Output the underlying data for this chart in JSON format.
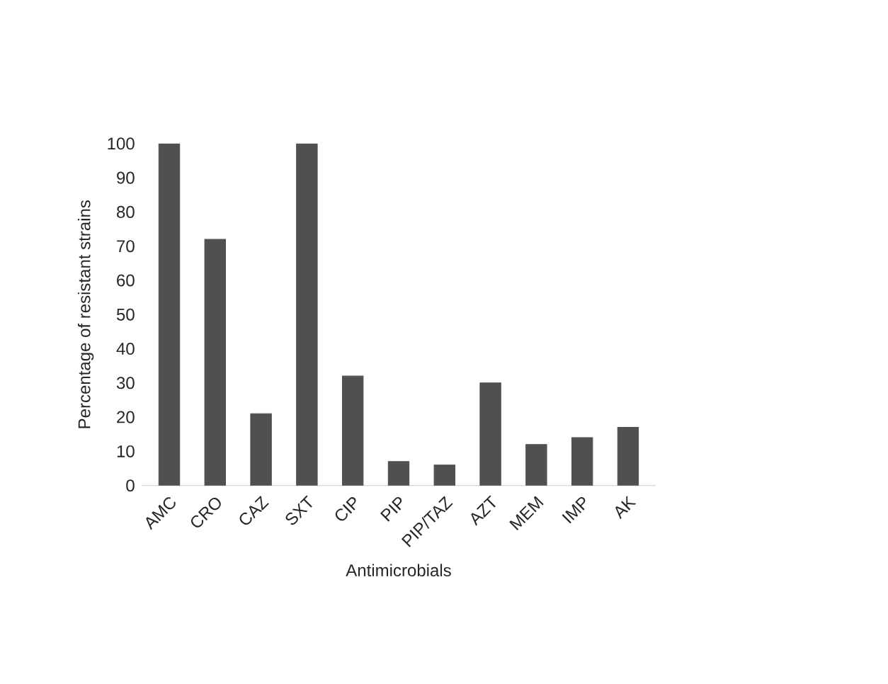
{
  "chart_data": {
    "type": "bar",
    "xlabel": "Antimicrobials",
    "ylabel": "Percentage of resistant strains",
    "categories": [
      "AMC",
      "CRO",
      "CAZ",
      "SXT",
      "CIP",
      "PIP",
      "PIP/TAZ",
      "AZT",
      "MEM",
      "IMP",
      "AK"
    ],
    "values": [
      100,
      72,
      21,
      100,
      32,
      7,
      6,
      30,
      12,
      14,
      17
    ],
    "color": "#505050",
    "ylim": [
      0,
      100
    ],
    "yticks": [
      0,
      10,
      20,
      30,
      40,
      50,
      60,
      70,
      80,
      90,
      100
    ],
    "grid": false
  }
}
